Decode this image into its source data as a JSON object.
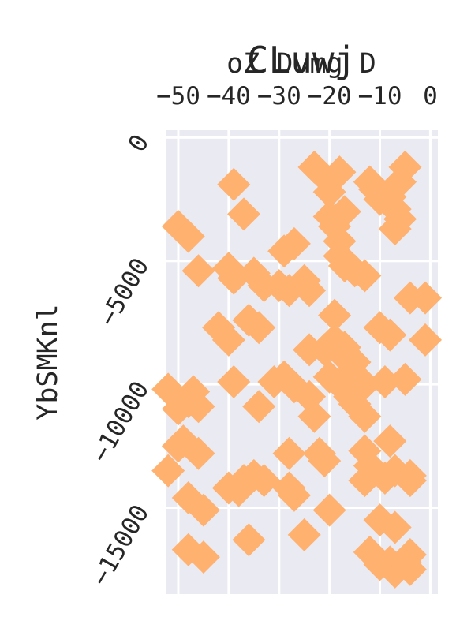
{
  "chart_data": {
    "type": "scatter",
    "title": "CLuwj",
    "xlabel": "oZ Dvmg D",
    "ylabel": "YbSMKnl",
    "xlim": [
      -52.5,
      1.5
    ],
    "ylim": [
      -18500,
      300
    ],
    "x_ticks": [
      -50,
      -40,
      -30,
      -20,
      -10,
      0
    ],
    "x_tick_labels": [
      "−50",
      "−40",
      "−30",
      "−20",
      "−10",
      "0"
    ],
    "y_ticks": [
      0,
      -5000,
      -10000,
      -15000
    ],
    "y_tick_labels": [
      "0",
      "−5000",
      "−10000",
      "−15000"
    ],
    "x_axis_position": "top",
    "y_axis_inverted": false,
    "grid": true,
    "marker": "diamond",
    "colors": {
      "marker": "#ffb170",
      "plot_bg": "#eaeaf2",
      "grid": "#ffffff",
      "text": "#262626"
    },
    "points": [
      {
        "x": -23,
        "y": -1200
      },
      {
        "x": -39,
        "y": -1900
      },
      {
        "x": -18,
        "y": -1400
      },
      {
        "x": -20,
        "y": -1800
      },
      {
        "x": -20,
        "y": -2200
      },
      {
        "x": -12,
        "y": -1800
      },
      {
        "x": -11,
        "y": -2100
      },
      {
        "x": -10,
        "y": -2500
      },
      {
        "x": -6,
        "y": -1800
      },
      {
        "x": -5,
        "y": -1200
      },
      {
        "x": -8,
        "y": -2400
      },
      {
        "x": -7,
        "y": -2900
      },
      {
        "x": -6,
        "y": -3300
      },
      {
        "x": -7,
        "y": -3700
      },
      {
        "x": -17,
        "y": -3000
      },
      {
        "x": -20,
        "y": -3200
      },
      {
        "x": -19,
        "y": -3600
      },
      {
        "x": -18,
        "y": -4200
      },
      {
        "x": -37,
        "y": -3100
      },
      {
        "x": -50,
        "y": -3600
      },
      {
        "x": -48,
        "y": -4000
      },
      {
        "x": -27,
        "y": -4300
      },
      {
        "x": -29,
        "y": -4600
      },
      {
        "x": -18,
        "y": -4800
      },
      {
        "x": -17,
        "y": -5200
      },
      {
        "x": -15,
        "y": -5400
      },
      {
        "x": -13,
        "y": -5600
      },
      {
        "x": -46,
        "y": -5400
      },
      {
        "x": -40,
        "y": -5300
      },
      {
        "x": -39,
        "y": -5700
      },
      {
        "x": -35,
        "y": -5500
      },
      {
        "x": -33,
        "y": -6000
      },
      {
        "x": -30,
        "y": -6000
      },
      {
        "x": -28,
        "y": -6200
      },
      {
        "x": -25,
        "y": -5800
      },
      {
        "x": -24,
        "y": -6200
      },
      {
        "x": -4,
        "y": -6500
      },
      {
        "x": -1,
        "y": -6500
      },
      {
        "x": -19,
        "y": -7200
      },
      {
        "x": -42,
        "y": -7700
      },
      {
        "x": -40,
        "y": -8200
      },
      {
        "x": -36,
        "y": -7400
      },
      {
        "x": -34,
        "y": -7700
      },
      {
        "x": -10,
        "y": -7700
      },
      {
        "x": -8,
        "y": -8000
      },
      {
        "x": -1,
        "y": -8200
      },
      {
        "x": -24,
        "y": -8600
      },
      {
        "x": -21,
        "y": -8600
      },
      {
        "x": -19,
        "y": -8200
      },
      {
        "x": -17,
        "y": -8500
      },
      {
        "x": -17,
        "y": -8900
      },
      {
        "x": -15,
        "y": -9100
      },
      {
        "x": -39,
        "y": -9900
      },
      {
        "x": -31,
        "y": -9900
      },
      {
        "x": -29,
        "y": -9700
      },
      {
        "x": -27,
        "y": -10100
      },
      {
        "x": -24,
        "y": -10500
      },
      {
        "x": -20,
        "y": -9700
      },
      {
        "x": -18,
        "y": -10000
      },
      {
        "x": -16,
        "y": -10500
      },
      {
        "x": -15,
        "y": -9700
      },
      {
        "x": -13,
        "y": -10000
      },
      {
        "x": -9,
        "y": -9900
      },
      {
        "x": -5,
        "y": -9800
      },
      {
        "x": -52,
        "y": -10200
      },
      {
        "x": -47,
        "y": -10300
      },
      {
        "x": -48,
        "y": -10700
      },
      {
        "x": -50,
        "y": -11000
      },
      {
        "x": -46,
        "y": -10900
      },
      {
        "x": -34,
        "y": -10900
      },
      {
        "x": -23,
        "y": -11300
      },
      {
        "x": -15,
        "y": -10800
      },
      {
        "x": -13,
        "y": -11300
      },
      {
        "x": -49,
        "y": -12300
      },
      {
        "x": -50,
        "y": -12500
      },
      {
        "x": -46,
        "y": -12800
      },
      {
        "x": -28,
        "y": -12800
      },
      {
        "x": -22,
        "y": -12800
      },
      {
        "x": -21,
        "y": -13100
      },
      {
        "x": -13,
        "y": -12700
      },
      {
        "x": -12,
        "y": -13300
      },
      {
        "x": -8,
        "y": -12300
      },
      {
        "x": -52,
        "y": -13500
      },
      {
        "x": -13,
        "y": -13900
      },
      {
        "x": -9,
        "y": -13800
      },
      {
        "x": -7,
        "y": -13500
      },
      {
        "x": -4,
        "y": -13900
      },
      {
        "x": -4,
        "y": -13700
      },
      {
        "x": -40,
        "y": -14200
      },
      {
        "x": -38,
        "y": -14300
      },
      {
        "x": -37,
        "y": -13900
      },
      {
        "x": -35,
        "y": -13700
      },
      {
        "x": -33,
        "y": -13900
      },
      {
        "x": -28,
        "y": -14200
      },
      {
        "x": -27,
        "y": -14500
      },
      {
        "x": -48,
        "y": -14600
      },
      {
        "x": -45,
        "y": -15100
      },
      {
        "x": -20,
        "y": -15100
      },
      {
        "x": -25,
        "y": -16100
      },
      {
        "x": -10,
        "y": -15500
      },
      {
        "x": -7,
        "y": -15800
      },
      {
        "x": -48,
        "y": -16700
      },
      {
        "x": -45,
        "y": -17000
      },
      {
        "x": -36,
        "y": -16300
      },
      {
        "x": -12,
        "y": -16800
      },
      {
        "x": -10,
        "y": -17300
      },
      {
        "x": -8,
        "y": -17200
      },
      {
        "x": -7,
        "y": -17600
      },
      {
        "x": -4,
        "y": -16900
      },
      {
        "x": -5,
        "y": -17200
      },
      {
        "x": -4,
        "y": -17500
      }
    ]
  }
}
